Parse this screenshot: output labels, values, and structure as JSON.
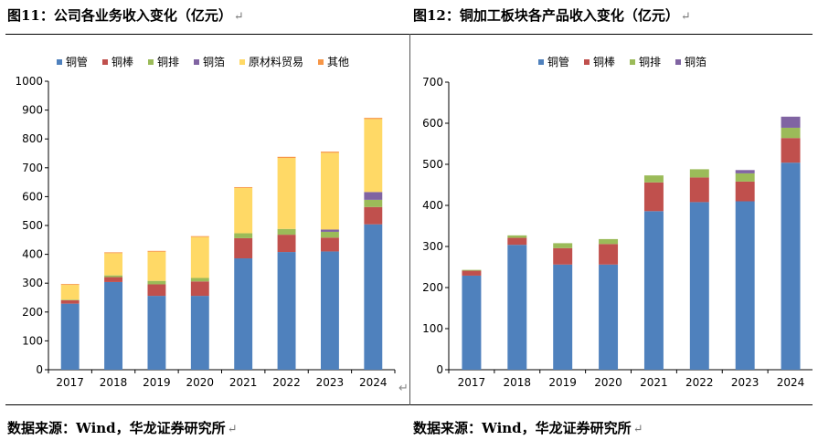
{
  "left_figure": {
    "title": "图11：公司各业务收入变化（亿元）",
    "source": "数据来源：Wind，华龙证券研究所"
  },
  "right_figure": {
    "title": "图12：铜加工板块各产品收入变化（亿元）",
    "source": "数据来源：Wind，华龙证券研究所"
  },
  "colors": {
    "铜管": "#4f81bd",
    "铜棒": "#c0504d",
    "铜排": "#9bbb59",
    "铜箔": "#8064a2",
    "原材料贸易": "#ffd966",
    "其他": "#f79646"
  },
  "chart_data": [
    {
      "type": "bar",
      "stacked": true,
      "categories": [
        "2017",
        "2018",
        "2019",
        "2020",
        "2021",
        "2022",
        "2023",
        "2024"
      ],
      "ylim": [
        0,
        1000
      ],
      "yticks": [
        0,
        100,
        200,
        300,
        400,
        500,
        600,
        700,
        800,
        900,
        1000
      ],
      "legend_position": "top",
      "grid": false,
      "series": [
        {
          "name": "铜管",
          "values": [
            229,
            304,
            256,
            256,
            386,
            408,
            410,
            504
          ]
        },
        {
          "name": "铜棒",
          "values": [
            12,
            17,
            40,
            50,
            70,
            60,
            48,
            60
          ]
        },
        {
          "name": "铜排",
          "values": [
            2,
            6,
            12,
            12,
            17,
            20,
            20,
            25
          ]
        },
        {
          "name": "铜箔",
          "values": [
            0,
            0,
            0,
            0,
            0,
            0,
            8,
            27
          ]
        },
        {
          "name": "原材料贸易",
          "values": [
            51,
            77,
            101,
            142,
            157,
            246,
            266,
            253
          ]
        },
        {
          "name": "其他",
          "values": [
            3,
            3,
            3,
            3,
            3,
            4,
            4,
            4
          ]
        }
      ]
    },
    {
      "type": "bar",
      "stacked": true,
      "categories": [
        "2017",
        "2018",
        "2019",
        "2020",
        "2021",
        "2022",
        "2023",
        "2024"
      ],
      "ylim": [
        0,
        700
      ],
      "yticks": [
        0,
        100,
        200,
        300,
        400,
        500,
        600,
        700
      ],
      "legend_position": "top",
      "grid": false,
      "series": [
        {
          "name": "铜管",
          "values": [
            229,
            304,
            256,
            256,
            386,
            408,
            410,
            504
          ]
        },
        {
          "name": "铜棒",
          "values": [
            12,
            17,
            40,
            50,
            70,
            60,
            48,
            60
          ]
        },
        {
          "name": "铜排",
          "values": [
            2,
            6,
            12,
            12,
            17,
            20,
            20,
            25
          ]
        },
        {
          "name": "铜箔",
          "values": [
            0,
            0,
            0,
            0,
            0,
            0,
            8,
            27
          ]
        }
      ]
    }
  ]
}
